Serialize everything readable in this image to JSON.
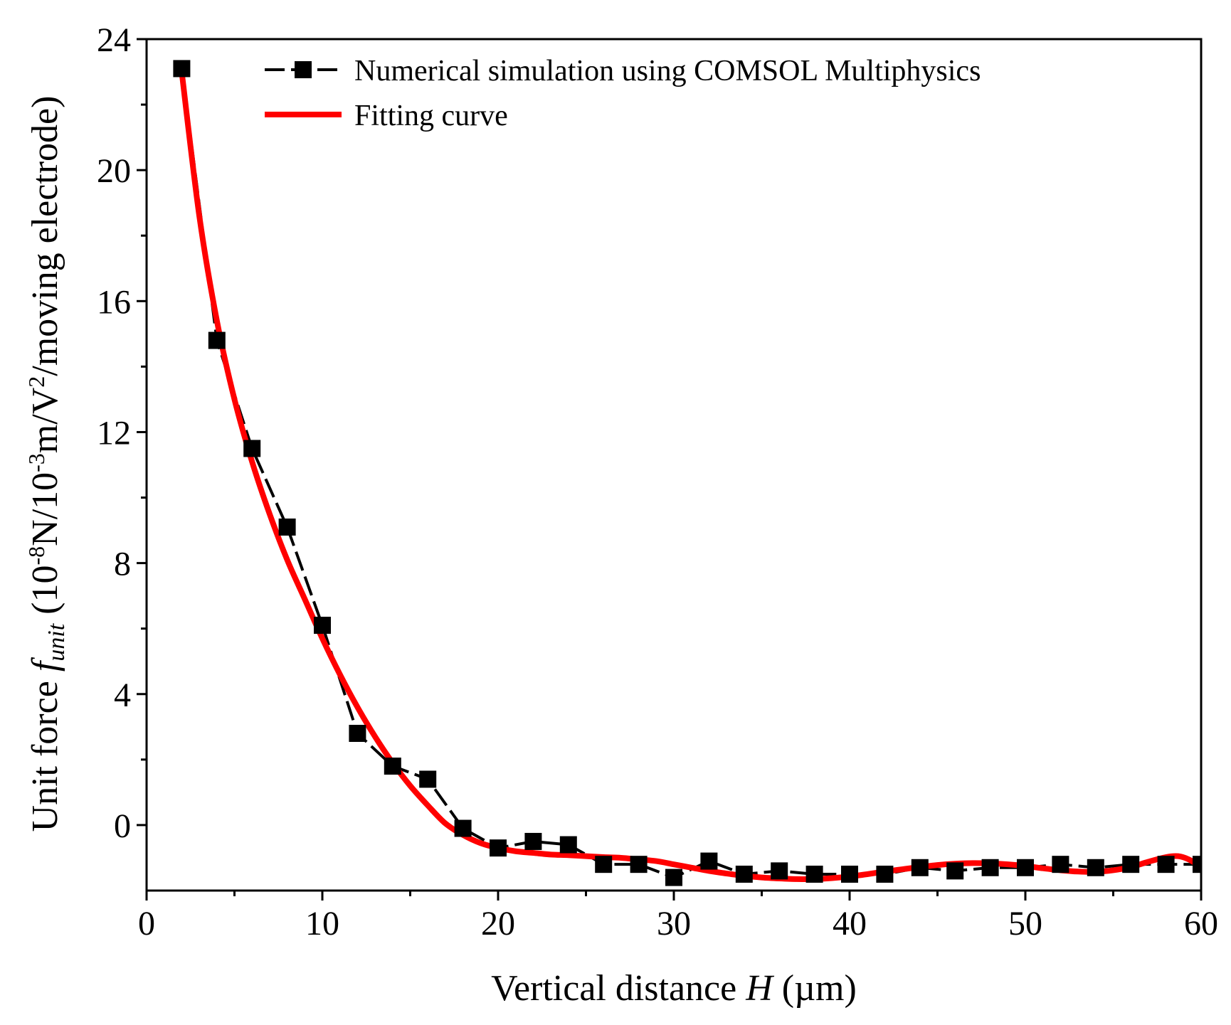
{
  "chart_data": {
    "type": "line",
    "title": "",
    "xlabel": "Vertical distance H (µm)",
    "xlabel_parts": {
      "prefix": "Vertical distance ",
      "var": "H",
      "suffix": " (µm)"
    },
    "ylabel": "Unit force f_unit (10^-8 N/10^-3 m/V^2/moving electrode)",
    "ylabel_parts": {
      "prefix": "Unit force ",
      "var": "f",
      "var_sub": "unit",
      "p1": " (10",
      "sup1": "-8",
      "p2": "N/10",
      "sup2": "-3",
      "p3": "m/V",
      "sup3": "2",
      "p4": "/moving electrode)"
    },
    "xlim": [
      0,
      60
    ],
    "ylim": [
      -2,
      24
    ],
    "xticks": [
      0,
      10,
      20,
      30,
      40,
      50,
      60
    ],
    "yticks": [
      0,
      4,
      8,
      12,
      16,
      20,
      24
    ],
    "legend_position": "top-right",
    "series": [
      {
        "name": "Numerical simulation using COMSOL Multiphysics",
        "style": "dashed line with square markers",
        "color": "#000000",
        "x": [
          2,
          4,
          6,
          8,
          10,
          12,
          14,
          16,
          18,
          20,
          22,
          24,
          26,
          28,
          30,
          32,
          34,
          36,
          38,
          40,
          42,
          44,
          46,
          48,
          50,
          52,
          54,
          56,
          58,
          60
        ],
        "y": [
          23.1,
          14.8,
          11.5,
          9.1,
          6.1,
          2.8,
          1.8,
          1.4,
          -0.1,
          -0.7,
          -0.5,
          -0.6,
          -1.2,
          -1.2,
          -1.6,
          -1.1,
          -1.5,
          -1.4,
          -1.5,
          -1.5,
          -1.5,
          -1.3,
          -1.4,
          -1.3,
          -1.3,
          -1.2,
          -1.3,
          -1.2,
          -1.2,
          -1.2
        ]
      },
      {
        "name": "Fitting curve",
        "style": "solid line",
        "color": "#ff0000",
        "x": [
          2,
          3,
          4,
          5,
          6,
          7,
          8,
          9,
          10,
          11,
          12,
          13,
          14,
          15,
          16,
          17,
          18,
          19,
          20,
          21,
          22,
          23,
          24,
          25,
          26,
          27,
          28,
          29,
          30,
          31,
          32,
          33,
          34,
          35,
          36,
          37,
          38,
          39,
          40,
          41,
          42,
          43,
          44,
          45,
          46,
          47,
          48,
          49,
          50,
          51,
          52,
          53,
          54,
          55,
          56,
          57,
          58,
          58.7,
          59.3,
          60
        ],
        "y": [
          23.0,
          18.6,
          15.4,
          13.0,
          11.1,
          9.5,
          8.1,
          6.9,
          5.7,
          4.6,
          3.6,
          2.7,
          1.9,
          1.2,
          0.6,
          0.05,
          -0.3,
          -0.55,
          -0.7,
          -0.8,
          -0.85,
          -0.9,
          -0.92,
          -0.95,
          -0.98,
          -1.0,
          -1.05,
          -1.1,
          -1.2,
          -1.3,
          -1.4,
          -1.48,
          -1.55,
          -1.6,
          -1.63,
          -1.65,
          -1.65,
          -1.62,
          -1.57,
          -1.5,
          -1.42,
          -1.35,
          -1.28,
          -1.22,
          -1.18,
          -1.16,
          -1.17,
          -1.2,
          -1.25,
          -1.32,
          -1.38,
          -1.42,
          -1.43,
          -1.38,
          -1.28,
          -1.12,
          -0.98,
          -0.95,
          -1.05,
          -1.28
        ]
      }
    ]
  }
}
